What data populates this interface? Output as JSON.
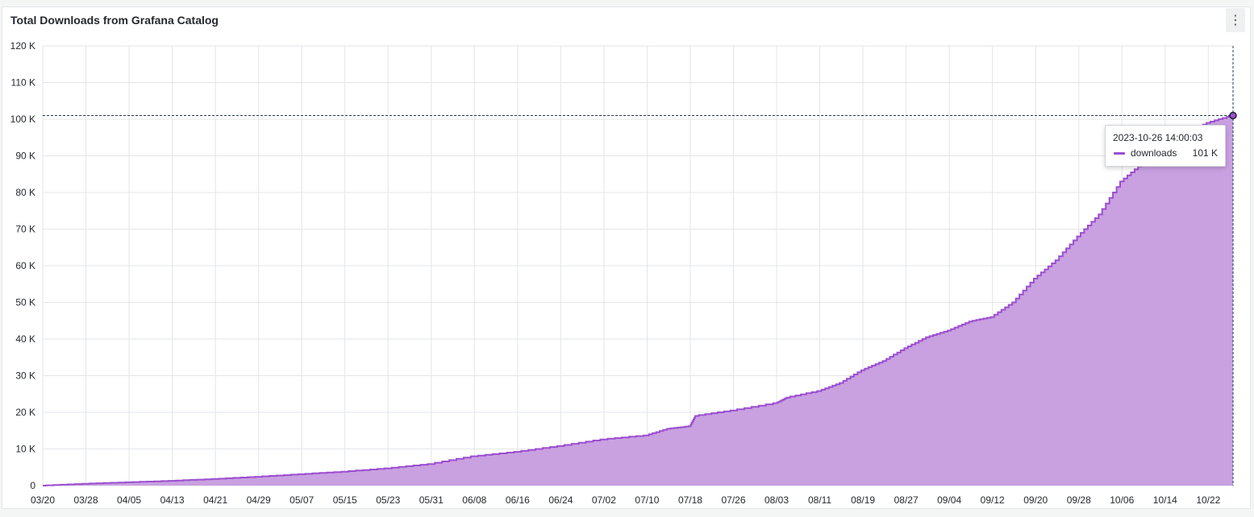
{
  "panel": {
    "title": "Total Downloads from Grafana Catalog",
    "menu_icon": "kebab-menu-icon"
  },
  "chart_data": {
    "type": "area",
    "title": "Total Downloads from Grafana Catalog",
    "xlabel": "",
    "ylabel": "",
    "xlim": [
      "2023-03-20",
      "2023-10-26"
    ],
    "ylim": [
      0,
      120000
    ],
    "yticks": [
      {
        "value": 0,
        "label": "0"
      },
      {
        "value": 10000,
        "label": "10 K"
      },
      {
        "value": 20000,
        "label": "20 K"
      },
      {
        "value": 30000,
        "label": "30 K"
      },
      {
        "value": 40000,
        "label": "40 K"
      },
      {
        "value": 50000,
        "label": "50 K"
      },
      {
        "value": 60000,
        "label": "60 K"
      },
      {
        "value": 70000,
        "label": "70 K"
      },
      {
        "value": 80000,
        "label": "80 K"
      },
      {
        "value": 90000,
        "label": "90 K"
      },
      {
        "value": 100000,
        "label": "100 K"
      },
      {
        "value": 110000,
        "label": "110 K"
      },
      {
        "value": 120000,
        "label": "120 K"
      }
    ],
    "xticks": [
      {
        "date": "2023-03-20",
        "label": "03/20"
      },
      {
        "date": "2023-03-28",
        "label": "03/28"
      },
      {
        "date": "2023-04-05",
        "label": "04/05"
      },
      {
        "date": "2023-04-13",
        "label": "04/13"
      },
      {
        "date": "2023-04-21",
        "label": "04/21"
      },
      {
        "date": "2023-04-29",
        "label": "04/29"
      },
      {
        "date": "2023-05-07",
        "label": "05/07"
      },
      {
        "date": "2023-05-15",
        "label": "05/15"
      },
      {
        "date": "2023-05-23",
        "label": "05/23"
      },
      {
        "date": "2023-05-31",
        "label": "05/31"
      },
      {
        "date": "2023-06-08",
        "label": "06/08"
      },
      {
        "date": "2023-06-16",
        "label": "06/16"
      },
      {
        "date": "2023-06-24",
        "label": "06/24"
      },
      {
        "date": "2023-07-02",
        "label": "07/02"
      },
      {
        "date": "2023-07-10",
        "label": "07/10"
      },
      {
        "date": "2023-07-18",
        "label": "07/18"
      },
      {
        "date": "2023-07-26",
        "label": "07/26"
      },
      {
        "date": "2023-08-03",
        "label": "08/03"
      },
      {
        "date": "2023-08-11",
        "label": "08/11"
      },
      {
        "date": "2023-08-19",
        "label": "08/19"
      },
      {
        "date": "2023-08-27",
        "label": "08/27"
      },
      {
        "date": "2023-09-04",
        "label": "09/04"
      },
      {
        "date": "2023-09-12",
        "label": "09/12"
      },
      {
        "date": "2023-09-20",
        "label": "09/20"
      },
      {
        "date": "2023-09-28",
        "label": "09/28"
      },
      {
        "date": "2023-10-06",
        "label": "10/06"
      },
      {
        "date": "2023-10-14",
        "label": "10/14"
      },
      {
        "date": "2023-10-22",
        "label": "10/22"
      }
    ],
    "grid": true,
    "legend": "none",
    "series": [
      {
        "name": "downloads",
        "color": "#9b4fd0",
        "fill": "#c9a0e0",
        "x": [
          "2023-03-20",
          "2023-03-28",
          "2023-04-05",
          "2023-04-13",
          "2023-04-21",
          "2023-04-29",
          "2023-05-07",
          "2023-05-15",
          "2023-05-23",
          "2023-05-31",
          "2023-06-08",
          "2023-06-16",
          "2023-06-24",
          "2023-07-02",
          "2023-07-10",
          "2023-07-14",
          "2023-07-18",
          "2023-07-19",
          "2023-07-26",
          "2023-08-03",
          "2023-08-05",
          "2023-08-11",
          "2023-08-15",
          "2023-08-19",
          "2023-08-23",
          "2023-08-27",
          "2023-08-31",
          "2023-09-04",
          "2023-09-08",
          "2023-09-12",
          "2023-09-16",
          "2023-09-20",
          "2023-09-24",
          "2023-09-28",
          "2023-10-02",
          "2023-10-06",
          "2023-10-10",
          "2023-10-14",
          "2023-10-18",
          "2023-10-22",
          "2023-10-26"
        ],
        "y": [
          0,
          500,
          900,
          1300,
          1800,
          2400,
          3100,
          3800,
          4700,
          5900,
          8000,
          9200,
          10800,
          12600,
          13700,
          15500,
          16200,
          19000,
          20500,
          22500,
          24000,
          25800,
          28000,
          31500,
          34000,
          37500,
          40500,
          42300,
          44800,
          46000,
          50000,
          56500,
          61500,
          68000,
          74000,
          83000,
          88000,
          91000,
          96000,
          99000,
          101000
        ]
      }
    ],
    "hover": {
      "date": "2023-10-26",
      "value": 101000
    }
  },
  "tooltip": {
    "time": "2023-10-26 14:00:03",
    "series_name": "downloads",
    "value": "101 K",
    "swatch_color": "#9b4fd0"
  }
}
